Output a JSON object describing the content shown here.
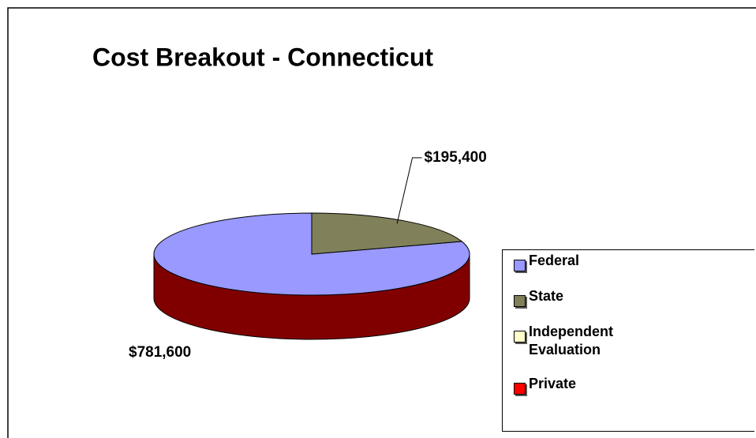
{
  "chart_data": {
    "type": "pie3d",
    "title": "Cost Breakout - Connecticut",
    "categories": [
      "Federal",
      "State",
      "Independent Evaluation",
      "Private"
    ],
    "values": [
      781600,
      195400,
      0,
      0
    ],
    "value_labels": [
      "$781,600",
      "$195,400",
      null,
      null
    ],
    "colors": [
      "#9999ff",
      "#80805a",
      "#ffffcc",
      "#ff0000"
    ]
  }
}
